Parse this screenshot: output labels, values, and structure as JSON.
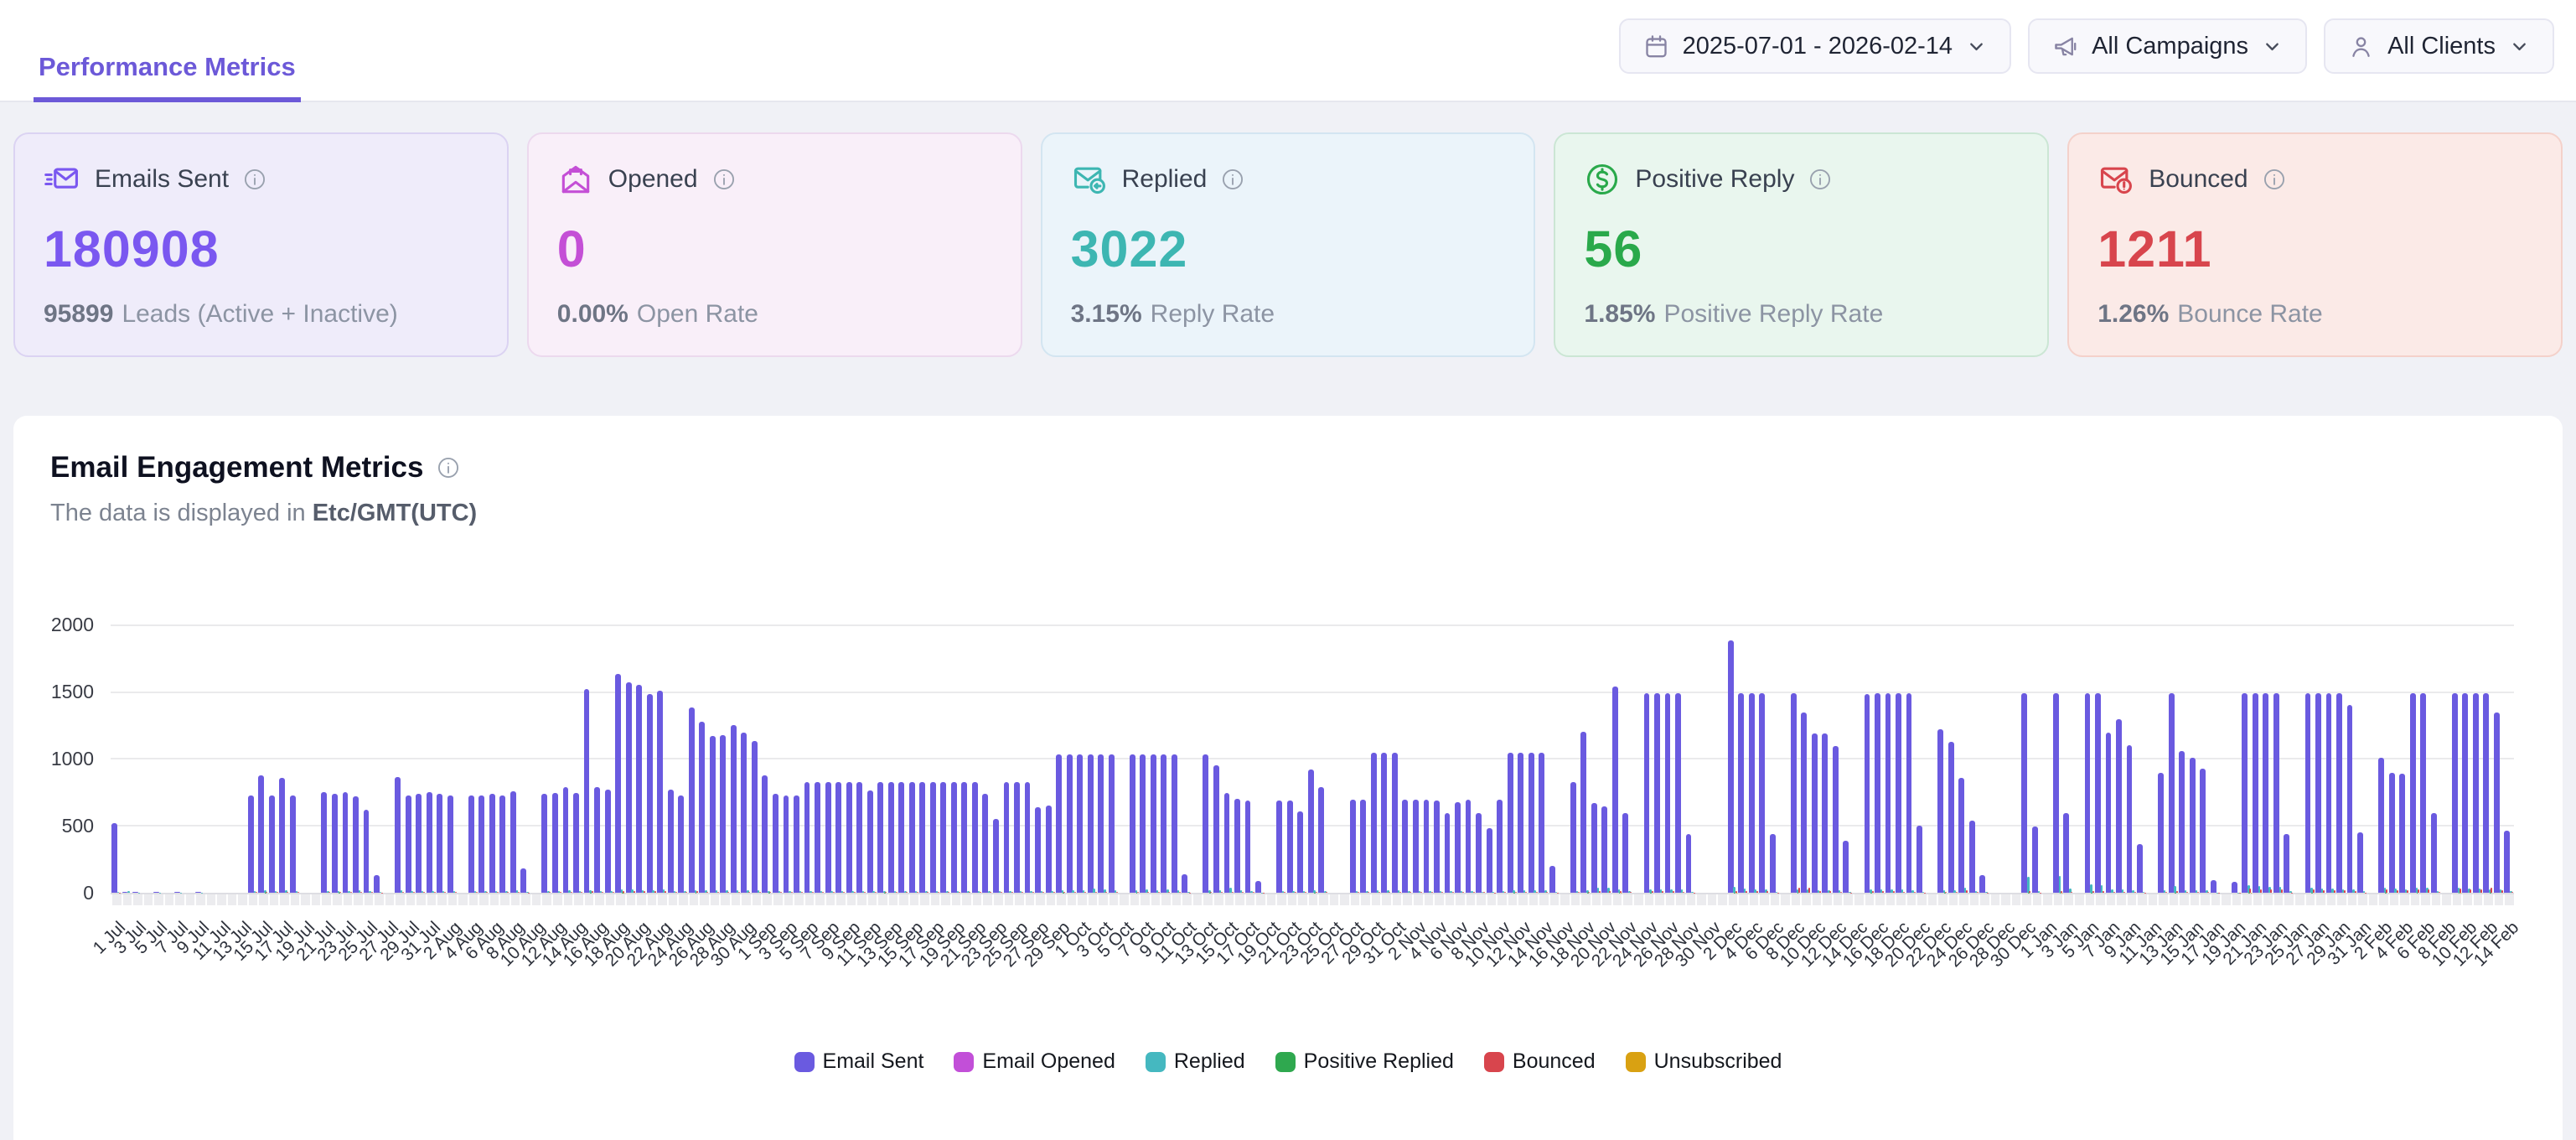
{
  "header": {
    "tab": "Performance Metrics"
  },
  "filters": {
    "date_range": "2025-07-01 - 2026-02-14",
    "campaigns": "All Campaigns",
    "clients": "All Clients"
  },
  "cards": [
    {
      "title": "Emails Sent",
      "value": "180908",
      "sub_value": "95899",
      "sub_label": "Leads (Active + Inactive)",
      "accent": "#7A57F0",
      "bg": "#EFECFA",
      "border": "#DBD3F2",
      "icon": "send-email-icon"
    },
    {
      "title": "Opened",
      "value": "0",
      "sub_value": "0.00%",
      "sub_label": "Open Rate",
      "accent": "#C44FD6",
      "bg": "#F9EFF9",
      "border": "#ECD9EE",
      "icon": "open-email-icon"
    },
    {
      "title": "Replied",
      "value": "3022",
      "sub_value": "3.15%",
      "sub_label": "Reply Rate",
      "accent": "#3DB6B2",
      "bg": "#EBF4FA",
      "border": "#D3E5F1",
      "icon": "reply-email-icon"
    },
    {
      "title": "Positive Reply",
      "value": "56",
      "sub_value": "1.85%",
      "sub_label": "Positive Reply Rate",
      "accent": "#2AA94B",
      "bg": "#E9F6EE",
      "border": "#CBE6D4",
      "icon": "dollar-circle-icon"
    },
    {
      "title": "Bounced",
      "value": "1211",
      "sub_value": "1.26%",
      "sub_label": "Bounce Rate",
      "accent": "#D8454D",
      "bg": "#FBEAE7",
      "border": "#F4D1CA",
      "icon": "bounce-email-icon"
    }
  ],
  "section": {
    "title": "Email Engagement Metrics",
    "subtitle_prefix": "The data is displayed in",
    "timezone": "Etc/GMT(UTC)"
  },
  "chart_data": {
    "type": "bar",
    "title": "Email Engagement Metrics",
    "xlabel": "",
    "ylabel": "",
    "ylim": [
      0,
      2000
    ],
    "yticks": [
      0,
      500,
      1000,
      1500,
      2000
    ],
    "grid": true,
    "legend_position": "bottom",
    "x_label_every": 2,
    "x_months": [
      {
        "name": "Jul",
        "days": 31
      },
      {
        "name": "Aug",
        "days": 31
      },
      {
        "name": "Sep",
        "days": 30
      },
      {
        "name": "Oct",
        "days": 31
      },
      {
        "name": "Nov",
        "days": 30
      },
      {
        "name": "Dec",
        "days": 31
      },
      {
        "name": "Jan",
        "days": 31
      },
      {
        "name": "Feb",
        "days": 14
      }
    ],
    "x_range_labels": [
      "1 Jul",
      "14 Feb"
    ],
    "series": [
      {
        "name": "Email Sent",
        "color": "#6A5AE0",
        "values": [
          520,
          5,
          5,
          0,
          5,
          0,
          5,
          0,
          5,
          0,
          0,
          0,
          0,
          730,
          880,
          730,
          860,
          730,
          0,
          0,
          755,
          745,
          755,
          725,
          620,
          130,
          0,
          865,
          730,
          745,
          755,
          740,
          730,
          0,
          730,
          730,
          740,
          730,
          760,
          180,
          0,
          745,
          750,
          790,
          750,
          1530,
          790,
          775,
          1640,
          1580,
          1560,
          1490,
          1515,
          775,
          730,
          1390,
          1280,
          1175,
          1180,
          1255,
          1200,
          1140,
          880,
          740,
          730,
          730,
          830,
          830,
          830,
          830,
          830,
          830,
          770,
          830,
          830,
          830,
          830,
          830,
          830,
          830,
          830,
          830,
          830,
          745,
          555,
          830,
          830,
          830,
          640,
          655,
          1035,
          1035,
          1035,
          1035,
          1035,
          1035,
          0,
          1035,
          1035,
          1035,
          1035,
          1035,
          140,
          0,
          1035,
          955,
          750,
          705,
          690,
          90,
          0,
          690,
          690,
          610,
          925,
          795,
          0,
          0,
          700,
          700,
          1050,
          1050,
          1050,
          700,
          700,
          700,
          690,
          600,
          680,
          700,
          595,
          485,
          700,
          1050,
          1050,
          1050,
          1050,
          200,
          0,
          830,
          1210,
          670,
          645,
          1545,
          595,
          0,
          1495,
          1495,
          1495,
          1495,
          440,
          0,
          0,
          0,
          1895,
          1495,
          1495,
          1495,
          440,
          0,
          1495,
          1355,
          1195,
          1195,
          1100,
          390,
          0,
          1490,
          1500,
          1500,
          1500,
          1495,
          505,
          0,
          1225,
          1130,
          860,
          540,
          130,
          0,
          0,
          0,
          1500,
          500,
          0,
          1500,
          595,
          0,
          1500,
          1500,
          1200,
          1300,
          1110,
          365,
          0,
          900,
          1500,
          1065,
          1015,
          930,
          95,
          0,
          85,
          1500,
          1500,
          1500,
          1500,
          440,
          0,
          1500,
          1500,
          1500,
          1500,
          1410,
          450,
          0,
          1015,
          900,
          895,
          1500,
          1500,
          600,
          0,
          1500,
          1500,
          1500,
          1500,
          1355,
          465
        ]
      },
      {
        "name": "Email Opened",
        "color": "#C24FD8",
        "values": {
          "default": 0,
          "overrides": {}
        }
      },
      {
        "name": "Replied",
        "color": "#45B8C0",
        "values": [
          8,
          10,
          3,
          0,
          2,
          0,
          2,
          0,
          2,
          0,
          0,
          0,
          0,
          15,
          18,
          14,
          16,
          15,
          0,
          0,
          14,
          15,
          13,
          16,
          12,
          4,
          0,
          16,
          13,
          15,
          14,
          14,
          12,
          0,
          13,
          14,
          15,
          13,
          16,
          5,
          0,
          15,
          14,
          16,
          15,
          22,
          14,
          13,
          25,
          24,
          22,
          21,
          23,
          12,
          11,
          20,
          19,
          18,
          18,
          19,
          17,
          16,
          15,
          13,
          12,
          13,
          14,
          13,
          15,
          14,
          13,
          15,
          13,
          15,
          14,
          13,
          15,
          14,
          13,
          15,
          14,
          13,
          15,
          12,
          10,
          14,
          13,
          14,
          11,
          10,
          17,
          16,
          18,
          30,
          24,
          20,
          0,
          22,
          25,
          20,
          24,
          21,
          4,
          0,
          20,
          18,
          35,
          16,
          14,
          3,
          0,
          13,
          14,
          12,
          16,
          15,
          0,
          0,
          13,
          14,
          18,
          20,
          17,
          12,
          13,
          12,
          11,
          10,
          12,
          11,
          9,
          8,
          12,
          18,
          20,
          17,
          19,
          4,
          0,
          15,
          22,
          40,
          35,
          28,
          10,
          0,
          28,
          26,
          25,
          24,
          8,
          0,
          0,
          0,
          45,
          30,
          28,
          26,
          8,
          0,
          28,
          25,
          22,
          20,
          18,
          6,
          0,
          25,
          24,
          26,
          23,
          22,
          8,
          0,
          20,
          18,
          35,
          10,
          4,
          0,
          0,
          0,
          120,
          15,
          0,
          125,
          30,
          0,
          60,
          55,
          25,
          28,
          22,
          8,
          0,
          18,
          50,
          22,
          20,
          18,
          3,
          0,
          3,
          55,
          48,
          45,
          42,
          10,
          0,
          35,
          32,
          30,
          28,
          25,
          10,
          0,
          35,
          30,
          28,
          40,
          38,
          15,
          0,
          35,
          32,
          30,
          28,
          25,
          10
        ]
      },
      {
        "name": "Positive Replied",
        "color": "#2FA84F",
        "values": {
          "default": 0,
          "overrides": {
            "14": 1,
            "21": 1,
            "45": 1,
            "48": 2,
            "55": 1,
            "62": 1,
            "73": 1,
            "90": 1,
            "97": 1,
            "104": 1,
            "114": 1,
            "133": 1,
            "140": 1,
            "143": 2,
            "146": 1,
            "154": 2,
            "160": 1,
            "167": 1,
            "174": 1,
            "182": 2,
            "185": 2,
            "188": 1,
            "196": 1,
            "203": 2,
            "209": 1,
            "216": 1,
            "219": 1,
            "223": 2,
            "226": 1
          }
        }
      },
      {
        "name": "Bounced",
        "color": "#D8454D",
        "values": [
          3,
          0,
          0,
          0,
          0,
          0,
          0,
          0,
          0,
          0,
          0,
          0,
          0,
          8,
          9,
          7,
          8,
          7,
          0,
          0,
          7,
          8,
          6,
          7,
          5,
          2,
          0,
          8,
          6,
          7,
          6,
          6,
          5,
          0,
          6,
          7,
          6,
          5,
          7,
          2,
          0,
          7,
          6,
          8,
          7,
          12,
          6,
          5,
          14,
          13,
          12,
          11,
          12,
          5,
          5,
          10,
          9,
          8,
          8,
          9,
          8,
          7,
          7,
          5,
          5,
          5,
          6,
          5,
          6,
          5,
          6,
          5,
          5,
          6,
          5,
          6,
          5,
          6,
          5,
          6,
          5,
          6,
          5,
          4,
          4,
          5,
          5,
          5,
          4,
          4,
          8,
          7,
          8,
          9,
          8,
          7,
          0,
          8,
          9,
          8,
          7,
          8,
          1,
          0,
          8,
          7,
          6,
          5,
          5,
          1,
          0,
          5,
          5,
          4,
          6,
          5,
          0,
          0,
          5,
          5,
          8,
          8,
          7,
          5,
          5,
          5,
          4,
          4,
          5,
          4,
          4,
          3,
          5,
          8,
          8,
          7,
          8,
          1,
          0,
          6,
          9,
          12,
          10,
          11,
          4,
          0,
          11,
          10,
          10,
          9,
          3,
          0,
          0,
          0,
          14,
          11,
          10,
          10,
          3,
          0,
          40,
          35,
          12,
          10,
          9,
          2,
          0,
          11,
          10,
          10,
          9,
          9,
          3,
          0,
          9,
          8,
          20,
          4,
          1,
          0,
          0,
          0,
          12,
          3,
          0,
          12,
          4,
          0,
          11,
          10,
          8,
          9,
          7,
          2,
          0,
          6,
          10,
          7,
          6,
          6,
          1,
          0,
          1,
          30,
          28,
          26,
          24,
          3,
          0,
          25,
          22,
          20,
          18,
          15,
          3,
          0,
          25,
          22,
          20,
          28,
          26,
          8,
          0,
          30,
          28,
          26,
          35,
          22,
          6
        ]
      },
      {
        "name": "Unsubscribed",
        "color": "#D9A112",
        "values": {
          "default": 0,
          "overrides": {
            "48": 1,
            "143": 1,
            "154": 2,
            "185": 1,
            "203": 1,
            "223": 1
          }
        }
      }
    ]
  },
  "theme": {
    "page_bg": "#F0F1F6",
    "header_bg": "#FFFFFF",
    "tab_accent": "#6C59D8",
    "gridline": "#EAEAEC"
  }
}
